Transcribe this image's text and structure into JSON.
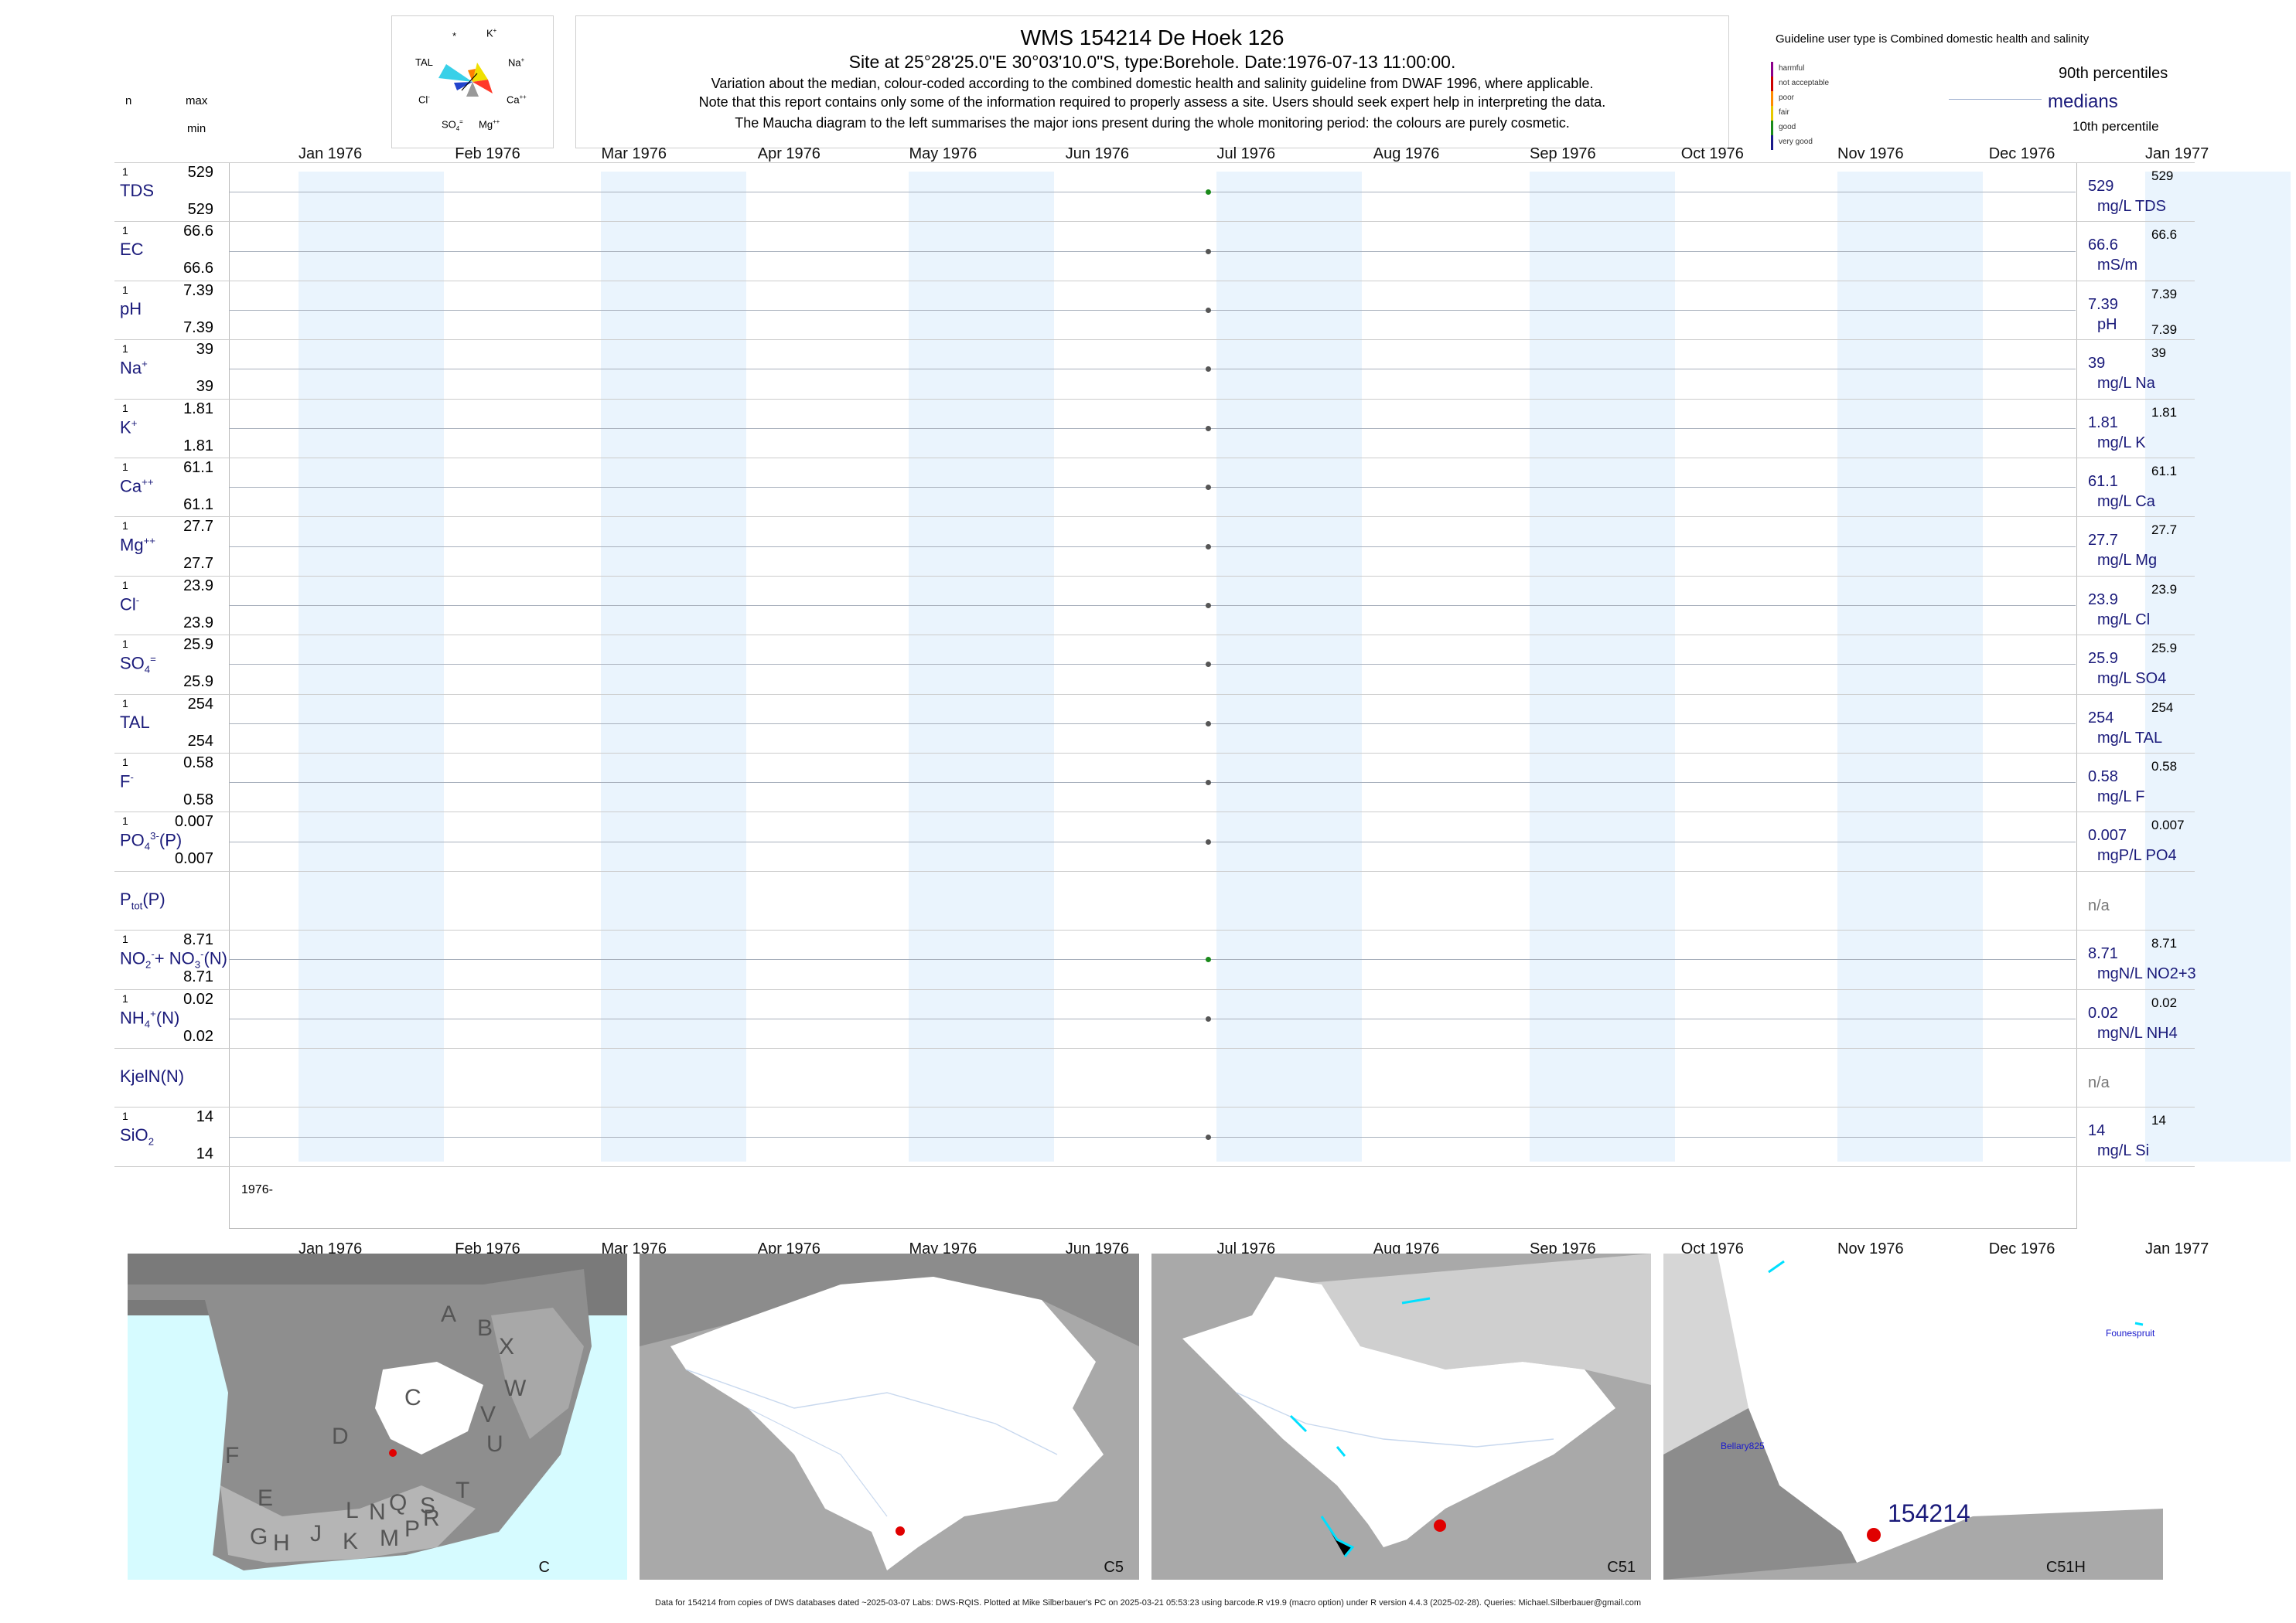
{
  "header": {
    "title": "WMS 154214  De Hoek 126",
    "subtitle": "Site at 25°28'25.0\"E 30°03'10.0\"S, type:Borehole. Date:1976-07-13 11:00:00.",
    "note1": "Variation about the median,  colour-coded according to the combined domestic health and salinity guideline from DWAF 1996, where applicable.",
    "note2": "Note that this report contains only some of the information required to properly assess a site. Users should seek expert help in interpreting the data.",
    "note3": "The Maucha diagram to the left summarises the major ions present during the whole monitoring period: the colours are purely cosmetic."
  },
  "left_header": {
    "n": "n",
    "max": "max",
    "min": "min"
  },
  "maucha": {
    "star": "*",
    "k": "K",
    "na": "Na",
    "ca": "Ca",
    "mg": "Mg",
    "so4": "SO",
    "cl": "Cl",
    "tal": "TAL"
  },
  "guideline": {
    "title": "Guideline user type is Combined domestic health and salinity",
    "levels": [
      "harmful",
      "not acceptable",
      "poor",
      "fair",
      "good",
      "very good"
    ],
    "level_colors": [
      "#8b008b",
      "#cc0000",
      "#ff8c00",
      "#e6c800",
      "#1a8a1a",
      "#1a1a8a"
    ],
    "p90": "90th percentiles",
    "medians": "medians",
    "p10": "10th percentile"
  },
  "months": [
    "Jan 1976",
    "Feb 1976",
    "Mar 1976",
    "Apr 1976",
    "May 1976",
    "Jun 1976",
    "Jul 1976",
    "Aug 1976",
    "Sep 1976",
    "Oct 1976",
    "Nov 1976",
    "Dec 1976",
    "Jan 1977"
  ],
  "year_label": "1976-",
  "chart_data": {
    "type": "scatter",
    "x_range": [
      "1976-01-01",
      "1977-01-01"
    ],
    "sample_date": "1976-07-13",
    "series": [
      {
        "key": "TDS",
        "label": "TDS",
        "n": "1",
        "max": "529",
        "min": "529",
        "value": "529",
        "unit": "mg/L TDS",
        "rmax": "529",
        "rmin": "",
        "color": "#1a8a1a"
      },
      {
        "key": "EC",
        "label": "EC",
        "n": "1",
        "max": "66.6",
        "min": "66.6",
        "value": "66.6",
        "unit": "mS/m",
        "rmax": "66.6",
        "rmin": "",
        "color": "#555555"
      },
      {
        "key": "pH",
        "label": "pH",
        "n": "1",
        "max": "7.39",
        "min": "7.39",
        "value": "7.39",
        "unit": "pH",
        "rmax": "7.39",
        "rmin": "7.39",
        "color": "#555555"
      },
      {
        "key": "Na",
        "label": "Na",
        "sup": "+",
        "n": "1",
        "max": "39",
        "min": "39",
        "value": "39",
        "unit": "mg/L Na",
        "rmax": "39",
        "rmin": "",
        "color": "#555555"
      },
      {
        "key": "K",
        "label": "K",
        "sup": "+",
        "n": "1",
        "max": "1.81",
        "min": "1.81",
        "value": "1.81",
        "unit": "mg/L K",
        "rmax": "1.81",
        "rmin": "",
        "color": "#555555"
      },
      {
        "key": "Ca",
        "label": "Ca",
        "sup": "++",
        "n": "1",
        "max": "61.1",
        "min": "61.1",
        "value": "61.1",
        "unit": "mg/L Ca",
        "rmax": "61.1",
        "rmin": "",
        "color": "#555555"
      },
      {
        "key": "Mg",
        "label": "Mg",
        "sup": "++",
        "n": "1",
        "max": "27.7",
        "min": "27.7",
        "value": "27.7",
        "unit": "mg/L Mg",
        "rmax": "27.7",
        "rmin": "",
        "color": "#555555"
      },
      {
        "key": "Cl",
        "label": "Cl",
        "sup": "-",
        "n": "1",
        "max": "23.9",
        "min": "23.9",
        "value": "23.9",
        "unit": "mg/L Cl",
        "rmax": "23.9",
        "rmin": "",
        "color": "#555555"
      },
      {
        "key": "SO4",
        "label": "SO",
        "sup": "=",
        "sub": "4",
        "n": "1",
        "max": "25.9",
        "min": "25.9",
        "value": "25.9",
        "unit": "mg/L SO4",
        "rmax": "25.9",
        "rmin": "",
        "color": "#555555"
      },
      {
        "key": "TAL",
        "label": "TAL",
        "n": "1",
        "max": "254",
        "min": "254",
        "value": "254",
        "unit": "mg/L TAL",
        "rmax": "254",
        "rmin": "",
        "color": "#555555"
      },
      {
        "key": "F",
        "label": "F",
        "sup": "-",
        "n": "1",
        "max": "0.58",
        "min": "0.58",
        "value": "0.58",
        "unit": "mg/L F",
        "rmax": "0.58",
        "rmin": "",
        "color": "#555555"
      },
      {
        "key": "PO4",
        "label": "PO",
        "sup": "3-",
        "sub": "4",
        "tail": "(P)",
        "n": "1",
        "max": "0.007",
        "min": "0.007",
        "value": "0.007",
        "unit": "mgP/L PO4",
        "rmax": "0.007",
        "rmin": "",
        "color": "#555555"
      },
      {
        "key": "Ptot",
        "label": "P",
        "sub": "tot",
        "tail": "(P)",
        "n": "",
        "max": "",
        "min": "",
        "value": "n/a",
        "unit": "",
        "rmax": "",
        "rmin": "",
        "color": ""
      },
      {
        "key": "NO3",
        "label": "NO",
        "sub": "2",
        "sup": "-",
        "tail": "+ NO",
        "sub2": "3",
        "sup2": "-",
        "tail2": "(N)",
        "n": "1",
        "max": "8.71",
        "min": "8.71",
        "value": "8.71",
        "unit": "mgN/L NO2+3",
        "rmax": "8.71",
        "rmin": "",
        "color": "#1a8a1a"
      },
      {
        "key": "NH4",
        "label": "NH",
        "sup": "+",
        "sub": "4",
        "tail": "(N)",
        "n": "1",
        "max": "0.02",
        "min": "0.02",
        "value": "0.02",
        "unit": "mgN/L NH4",
        "rmax": "0.02",
        "rmin": "",
        "color": "#555555"
      },
      {
        "key": "KjelN",
        "label": "KjelN(N)",
        "n": "",
        "max": "",
        "min": "",
        "value": "n/a",
        "unit": "",
        "rmax": "",
        "rmin": "",
        "color": ""
      },
      {
        "key": "SiO2",
        "label": "SiO",
        "sub": "2",
        "n": "1",
        "max": "14",
        "min": "14",
        "value": "14",
        "unit": "mg/L Si",
        "rmax": "14",
        "rmin": "",
        "color": "#555555"
      }
    ]
  },
  "maps": [
    {
      "label": "C",
      "regions": [
        "A",
        "B",
        "X",
        "W",
        "C",
        "V",
        "U",
        "D",
        "T",
        "F",
        "E",
        "G",
        "H",
        "J",
        "K",
        "L",
        "N",
        "M",
        "Q",
        "P",
        "S",
        "R"
      ]
    },
    {
      "label": "C5"
    },
    {
      "label": "C51"
    },
    {
      "label": "C51H",
      "site": "154214",
      "places": [
        "Founespruit",
        "Bellary825"
      ]
    }
  ],
  "footer": "Data for 154214 from copies of DWS databases dated ~2025-03-07 Labs: DWS-RQIS. Plotted at Mike Silberbauer's PC on 2025-03-21 05:53:23 using barcode.R v19.9 (macro option) under R version 4.4.3 (2025-02-28). Queries: Michael.Silberbauer@gmail.com"
}
